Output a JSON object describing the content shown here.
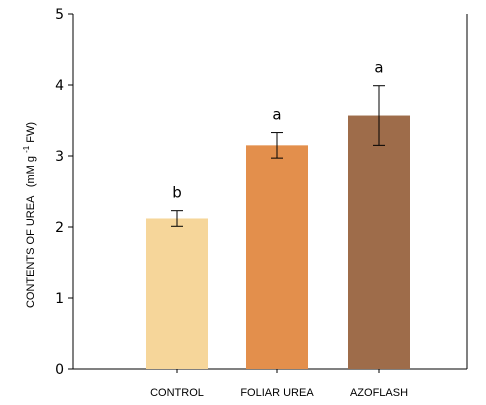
{
  "chart_data": {
    "type": "bar",
    "categories": [
      "CONTROL",
      "FOLIAR UREA",
      "AZOFLASH"
    ],
    "values": [
      2.12,
      3.15,
      3.57
    ],
    "errors": [
      0.11,
      0.18,
      0.42
    ],
    "significance": [
      "b",
      "a",
      "a"
    ],
    "colors": [
      "#f6d69a",
      "#e38f4c",
      "#9e6c4a"
    ],
    "ylim": [
      0,
      5
    ],
    "yticks": [
      0,
      1,
      2,
      3,
      4,
      5
    ],
    "ylabel_parts": {
      "main": "CONTENTS OF UREA",
      "paren_open": "(mM g",
      "sup": "-1",
      "paren_close": "FW)"
    },
    "xlabel": "",
    "title": ""
  }
}
